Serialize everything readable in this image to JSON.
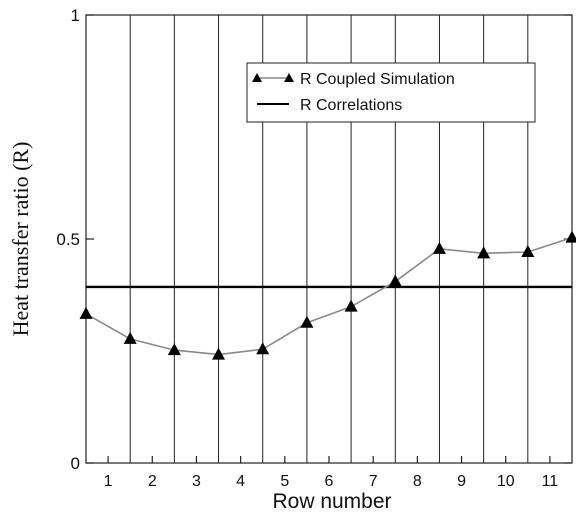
{
  "chart_data": {
    "type": "line",
    "xlabel": "Row number",
    "ylabel": "Heat transfer ratio (R)",
    "xlim": [
      0.5,
      11.5
    ],
    "ylim": [
      0,
      1
    ],
    "x_ticks": [
      "1",
      "2",
      "3",
      "4",
      "5",
      "6",
      "7",
      "8",
      "9",
      "10",
      "11"
    ],
    "y_ticks": [
      "0",
      "0.5",
      "1"
    ],
    "vertical_dividers_at": [
      1.5,
      2.5,
      3.5,
      4.5,
      5.5,
      6.5,
      7.5,
      8.5,
      9.5,
      10.5
    ],
    "legend_position": "top-right",
    "series": [
      {
        "name": "R Coupled Simulation",
        "style": "line-with-triangle-markers",
        "color": "#8a8a8a",
        "marker_color": "#000000",
        "x": [
          0.5,
          1.5,
          2.5,
          3.5,
          4.5,
          5.5,
          6.5,
          7.5,
          8.5,
          9.5,
          10.5,
          11.5
        ],
        "y": [
          0.333,
          0.277,
          0.252,
          0.242,
          0.254,
          0.313,
          0.349,
          0.405,
          0.478,
          0.468,
          0.471,
          0.503
        ]
      },
      {
        "name": "R Correlations",
        "style": "solid-line",
        "color": "#000000",
        "x": [
          0.5,
          11.5
        ],
        "y": [
          0.393,
          0.393
        ]
      }
    ]
  }
}
